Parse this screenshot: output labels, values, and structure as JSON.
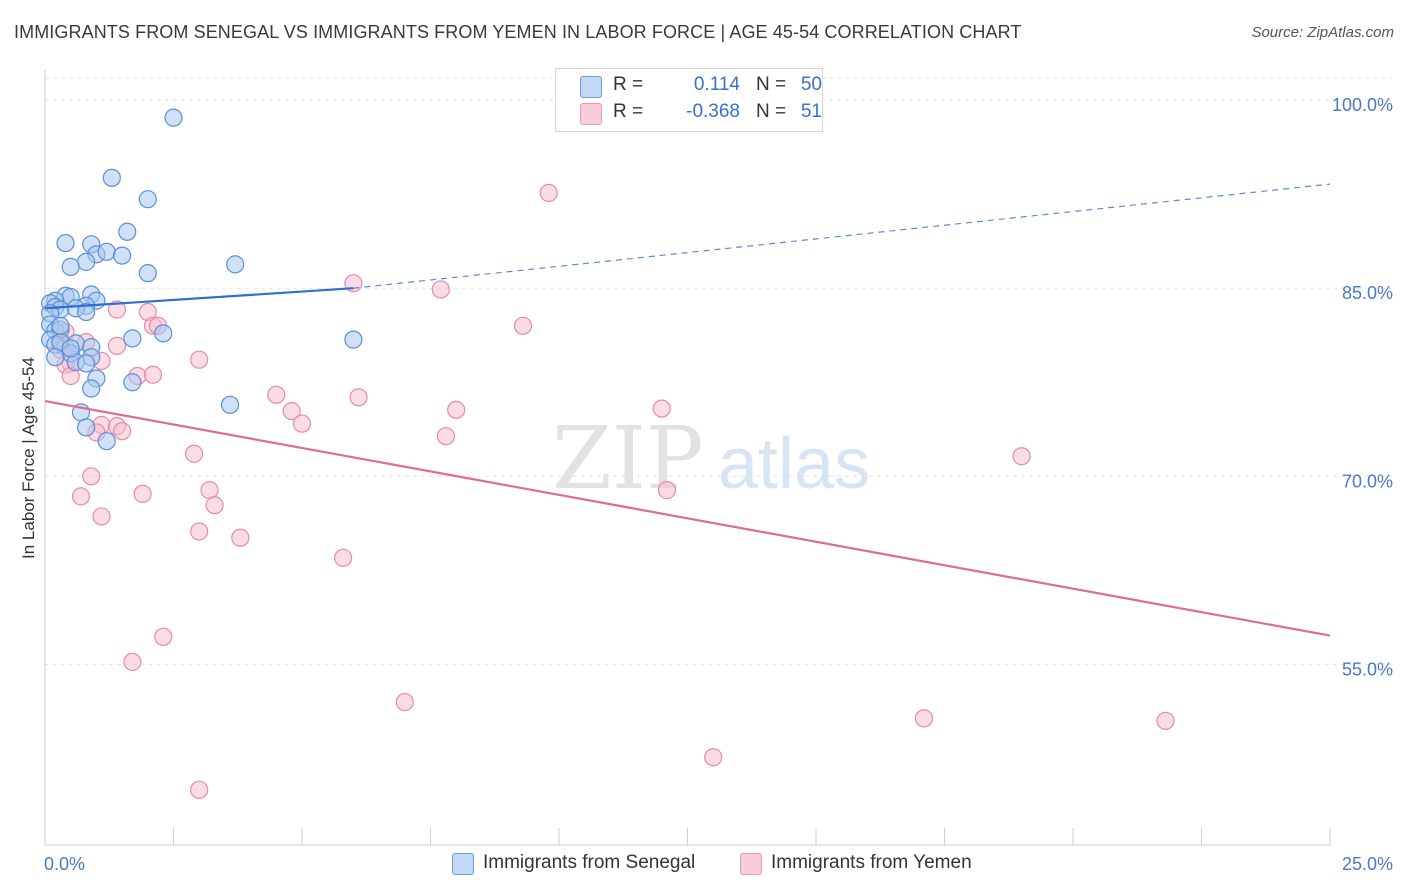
{
  "header": {
    "title": "IMMIGRANTS FROM SENEGAL VS IMMIGRANTS FROM YEMEN IN LABOR FORCE | AGE 45-54 CORRELATION CHART",
    "source": "Source: ZipAtlas.com"
  },
  "watermark": {
    "zip": "ZIP",
    "atlas": "atlas"
  },
  "legend": {
    "rows": [
      {
        "r_label": "R =",
        "r_value": "0.114",
        "n_label": "N =",
        "n_value": "50"
      },
      {
        "r_label": "R =",
        "r_value": "-0.368",
        "n_label": "N =",
        "n_value": "51"
      }
    ]
  },
  "colors": {
    "senegal_fill": "#a9c8f0",
    "senegal_stroke": "#5b8fd8",
    "senegal_line": "#2f6fd0",
    "yemen_fill": "#f6bfd0",
    "yemen_stroke": "#e88aa8",
    "yemen_line": "#e06a95",
    "axis_label": "#4a78c8",
    "grid": "#e3e3e3"
  },
  "chart_data": {
    "type": "scatter",
    "title": "IMMIGRANTS FROM SENEGAL VS IMMIGRANTS FROM YEMEN IN LABOR FORCE | AGE 45-54 CORRELATION CHART",
    "xlabel": "",
    "ylabel": "In Labor Force | Age 45-54",
    "xlim": [
      0,
      25
    ],
    "ylim": [
      40.6,
      102.4
    ],
    "x_tick_labels": [
      "0.0%",
      "25.0%"
    ],
    "y_ticks": [
      55,
      70,
      85,
      100
    ],
    "y_tick_labels": [
      "55.0%",
      "70.0%",
      "85.0%",
      "100.0%"
    ],
    "grid": true,
    "legend_position": "bottom",
    "series": [
      {
        "name": "Immigrants from Senegal",
        "points": [
          [
            2.5,
            98.6
          ],
          [
            1.3,
            93.8
          ],
          [
            2.0,
            92.1
          ],
          [
            1.6,
            89.5
          ],
          [
            0.4,
            88.6
          ],
          [
            0.9,
            88.5
          ],
          [
            1.0,
            87.7
          ],
          [
            1.2,
            87.9
          ],
          [
            1.5,
            87.6
          ],
          [
            0.8,
            87.1
          ],
          [
            3.7,
            86.9
          ],
          [
            0.5,
            86.7
          ],
          [
            2.0,
            86.2
          ],
          [
            0.4,
            84.4
          ],
          [
            0.5,
            84.3
          ],
          [
            0.9,
            84.5
          ],
          [
            0.2,
            84.0
          ],
          [
            1.0,
            84.0
          ],
          [
            0.8,
            83.6
          ],
          [
            0.1,
            83.8
          ],
          [
            0.2,
            83.5
          ],
          [
            0.3,
            83.3
          ],
          [
            0.6,
            83.4
          ],
          [
            0.1,
            83.0
          ],
          [
            0.8,
            83.1
          ],
          [
            0.1,
            82.1
          ],
          [
            0.2,
            81.6
          ],
          [
            0.3,
            81.7
          ],
          [
            2.3,
            81.4
          ],
          [
            6.0,
            80.9
          ],
          [
            0.1,
            80.9
          ],
          [
            1.7,
            81.0
          ],
          [
            0.2,
            80.5
          ],
          [
            0.3,
            80.7
          ],
          [
            0.6,
            80.6
          ],
          [
            0.9,
            80.3
          ],
          [
            0.5,
            79.8
          ],
          [
            0.2,
            79.5
          ],
          [
            0.9,
            79.5
          ],
          [
            0.6,
            79.1
          ],
          [
            0.8,
            79.0
          ],
          [
            1.0,
            77.8
          ],
          [
            1.7,
            77.5
          ],
          [
            0.9,
            77.0
          ],
          [
            3.6,
            75.7
          ],
          [
            0.7,
            75.1
          ],
          [
            0.8,
            73.9
          ],
          [
            1.2,
            72.8
          ],
          [
            0.3,
            82.0
          ],
          [
            0.5,
            80.2
          ]
        ],
        "trend": {
          "x": [
            0.0,
            6.0,
            25.0
          ],
          "y": [
            83.4,
            85.0,
            93.3
          ],
          "solid_until_x": 6.0
        }
      },
      {
        "name": "Immigrants from Yemen",
        "points": [
          [
            9.8,
            92.6
          ],
          [
            6.0,
            85.4
          ],
          [
            7.7,
            84.9
          ],
          [
            1.4,
            83.3
          ],
          [
            2.0,
            83.1
          ],
          [
            2.1,
            82.0
          ],
          [
            2.2,
            82.0
          ],
          [
            9.3,
            82.0
          ],
          [
            0.3,
            80.9
          ],
          [
            0.8,
            80.7
          ],
          [
            1.4,
            80.4
          ],
          [
            0.3,
            80.1
          ],
          [
            0.4,
            80.3
          ],
          [
            3.0,
            79.3
          ],
          [
            0.5,
            79.0
          ],
          [
            0.4,
            78.9
          ],
          [
            1.1,
            79.2
          ],
          [
            0.5,
            78.0
          ],
          [
            1.8,
            78.0
          ],
          [
            2.1,
            78.1
          ],
          [
            4.5,
            76.5
          ],
          [
            6.1,
            76.3
          ],
          [
            4.8,
            75.2
          ],
          [
            8.0,
            75.3
          ],
          [
            12.0,
            75.4
          ],
          [
            5.0,
            74.2
          ],
          [
            1.1,
            74.1
          ],
          [
            1.4,
            74.0
          ],
          [
            1.5,
            73.6
          ],
          [
            1.0,
            73.5
          ],
          [
            7.8,
            73.2
          ],
          [
            2.9,
            71.8
          ],
          [
            19.0,
            71.6
          ],
          [
            0.9,
            70.0
          ],
          [
            3.2,
            68.9
          ],
          [
            12.1,
            68.9
          ],
          [
            1.9,
            68.6
          ],
          [
            0.7,
            68.4
          ],
          [
            3.3,
            67.7
          ],
          [
            1.1,
            66.8
          ],
          [
            3.0,
            65.6
          ],
          [
            3.8,
            65.1
          ],
          [
            5.8,
            63.5
          ],
          [
            2.3,
            57.2
          ],
          [
            1.7,
            55.2
          ],
          [
            7.0,
            52.0
          ],
          [
            17.1,
            50.7
          ],
          [
            21.8,
            50.5
          ],
          [
            13.0,
            47.6
          ],
          [
            3.0,
            45.0
          ],
          [
            0.4,
            81.5
          ]
        ],
        "trend": {
          "x": [
            0.0,
            25.0
          ],
          "y": [
            76.0,
            57.3
          ]
        }
      }
    ]
  }
}
